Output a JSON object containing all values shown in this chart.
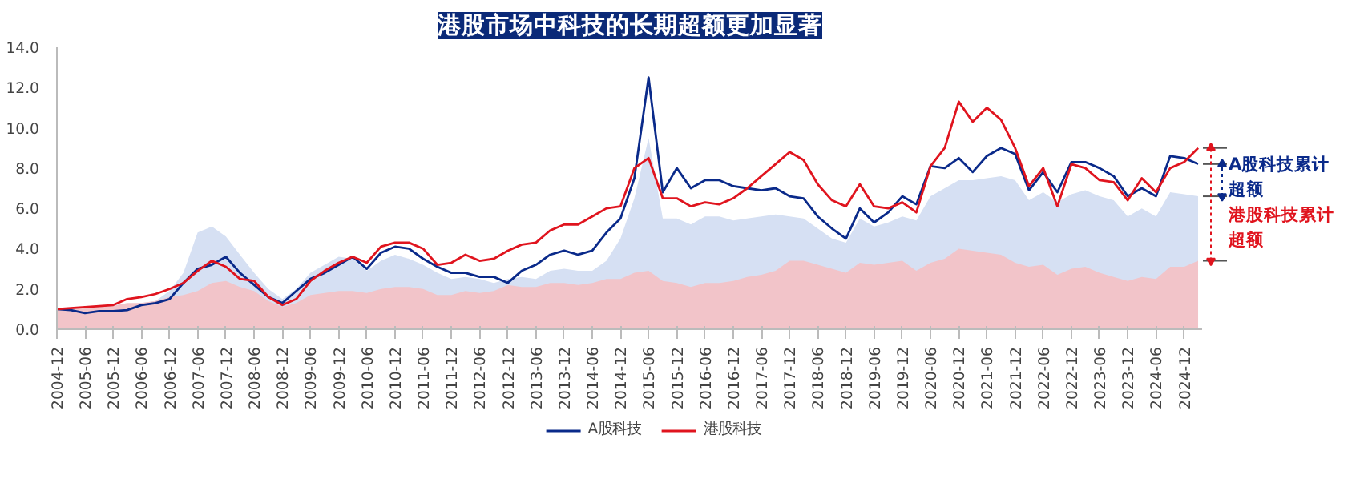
{
  "chart_data": {
    "type": "line",
    "title": "港股市场中科技的长期超额更加显著",
    "x": [
      "2004-12",
      "2005-03",
      "2005-06",
      "2005-09",
      "2005-12",
      "2006-03",
      "2006-06",
      "2006-09",
      "2006-12",
      "2007-03",
      "2007-06",
      "2007-09",
      "2007-12",
      "2008-03",
      "2008-06",
      "2008-09",
      "2008-12",
      "2009-03",
      "2009-06",
      "2009-09",
      "2009-12",
      "2010-03",
      "2010-06",
      "2010-09",
      "2010-12",
      "2011-03",
      "2011-06",
      "2011-09",
      "2011-12",
      "2012-03",
      "2012-06",
      "2012-09",
      "2012-12",
      "2013-03",
      "2013-06",
      "2013-09",
      "2013-12",
      "2014-03",
      "2014-06",
      "2014-09",
      "2014-12",
      "2015-03",
      "2015-06",
      "2015-09",
      "2015-12",
      "2016-03",
      "2016-06",
      "2016-09",
      "2016-12",
      "2017-03",
      "2017-06",
      "2017-09",
      "2017-12",
      "2018-03",
      "2018-06",
      "2018-09",
      "2018-12",
      "2019-03",
      "2019-06",
      "2019-09",
      "2019-12",
      "2020-03",
      "2020-06",
      "2020-09",
      "2020-12",
      "2021-03",
      "2021-06",
      "2021-09",
      "2021-12",
      "2022-03",
      "2022-06",
      "2022-09",
      "2022-12",
      "2023-03",
      "2023-06",
      "2023-09",
      "2023-12",
      "2024-03",
      "2024-06",
      "2024-09",
      "2024-12",
      "2025-03"
    ],
    "series": [
      {
        "type": "area",
        "color": "#d6e0f3",
        "values": [
          1.0,
          null,
          null,
          null,
          null,
          null,
          1.3,
          1.4,
          1.9,
          2.8,
          4.8,
          5.1,
          4.6,
          3.7,
          2.8,
          2.0,
          1.5,
          2.0,
          2.8,
          3.2,
          3.6,
          3.5,
          2.9,
          3.4,
          3.7,
          3.5,
          3.2,
          2.8,
          2.5,
          2.6,
          2.5,
          2.3,
          2.5,
          2.6,
          2.5,
          2.9,
          3.0,
          2.9,
          2.9,
          3.4,
          4.5,
          6.5,
          9.5,
          5.5,
          5.5,
          5.2,
          5.6,
          5.6,
          5.4,
          5.5,
          5.6,
          5.7,
          5.6,
          5.5,
          5.0,
          4.5,
          4.3,
          5.5,
          5.1,
          5.3,
          5.6,
          5.4,
          6.6,
          7.0,
          7.4,
          7.4,
          7.5,
          7.6,
          7.4,
          6.4,
          6.8,
          6.3,
          6.7,
          6.9,
          6.6,
          6.4,
          5.6,
          6.0,
          5.6,
          6.8,
          6.7,
          6.6
        ]
      },
      {
        "type": "area",
        "color": "#f2c4c9",
        "values": [
          1.0,
          1.0,
          1.05,
          1.1,
          1.15,
          1.3,
          1.3,
          1.4,
          1.6,
          1.7,
          1.9,
          2.3,
          2.4,
          2.1,
          1.9,
          1.4,
          1.1,
          1.3,
          1.7,
          1.8,
          1.9,
          1.9,
          1.8,
          2.0,
          2.1,
          2.1,
          2.0,
          1.7,
          1.7,
          1.9,
          1.8,
          1.9,
          2.2,
          2.1,
          2.1,
          2.3,
          2.3,
          2.2,
          2.3,
          2.5,
          2.5,
          2.8,
          2.9,
          2.4,
          2.3,
          2.1,
          2.3,
          2.3,
          2.4,
          2.6,
          2.7,
          2.9,
          3.4,
          3.4,
          3.2,
          3.0,
          2.8,
          3.3,
          3.2,
          3.3,
          3.4,
          2.9,
          3.3,
          3.5,
          4.0,
          3.9,
          3.8,
          3.7,
          3.3,
          3.1,
          3.2,
          2.7,
          3.0,
          3.1,
          2.8,
          2.6,
          2.4,
          2.6,
          2.5,
          3.1,
          3.1,
          3.4
        ]
      },
      {
        "name": "A股科技",
        "color": "#0a2a8a",
        "values": [
          1.0,
          0.95,
          0.8,
          0.9,
          0.9,
          0.95,
          1.2,
          1.3,
          1.5,
          2.3,
          3.0,
          3.2,
          3.6,
          2.8,
          2.2,
          1.6,
          1.3,
          1.9,
          2.5,
          2.8,
          3.2,
          3.6,
          3.0,
          3.8,
          4.1,
          4.0,
          3.5,
          3.1,
          2.8,
          2.8,
          2.6,
          2.6,
          2.3,
          2.9,
          3.2,
          3.7,
          3.9,
          3.7,
          3.9,
          4.8,
          5.5,
          7.5,
          12.5,
          6.8,
          8.0,
          7.0,
          7.4,
          7.4,
          7.1,
          7.0,
          6.9,
          7.0,
          6.6,
          6.5,
          5.6,
          5.0,
          4.5,
          6.0,
          5.3,
          5.8,
          6.6,
          6.2,
          8.1,
          8.0,
          8.5,
          7.8,
          8.6,
          9.0,
          8.7,
          6.9,
          7.8,
          6.8,
          8.3,
          8.3,
          8.0,
          7.6,
          6.6,
          7.0,
          6.6,
          8.6,
          8.5,
          8.2
        ]
      },
      {
        "name": "港股科技",
        "color": "#e0141e",
        "values": [
          1.0,
          1.05,
          1.1,
          1.15,
          1.2,
          1.5,
          1.6,
          1.75,
          2.0,
          2.3,
          2.9,
          3.4,
          3.1,
          2.5,
          2.4,
          1.6,
          1.2,
          1.5,
          2.4,
          2.9,
          3.3,
          3.6,
          3.3,
          4.1,
          4.3,
          4.3,
          4.0,
          3.2,
          3.3,
          3.7,
          3.4,
          3.5,
          3.9,
          4.2,
          4.3,
          4.9,
          5.2,
          5.2,
          5.6,
          6.0,
          6.1,
          8.0,
          8.5,
          6.5,
          6.5,
          6.1,
          6.3,
          6.2,
          6.5,
          7.0,
          7.6,
          8.2,
          8.8,
          8.4,
          7.2,
          6.4,
          6.1,
          7.2,
          6.1,
          6.0,
          6.3,
          5.8,
          8.1,
          9.0,
          11.3,
          10.3,
          11.0,
          10.4,
          9.0,
          7.1,
          8.0,
          6.1,
          8.2,
          8.0,
          7.4,
          7.3,
          6.4,
          7.5,
          6.8,
          8.0,
          8.3,
          9.0
        ]
      }
    ],
    "xlim": [
      "2004-12",
      "2025-04"
    ],
    "xticks": [
      "2004-12",
      "2005-06",
      "2005-12",
      "2006-06",
      "2006-12",
      "2007-06",
      "2007-12",
      "2008-06",
      "2008-12",
      "2009-06",
      "2009-12",
      "2010-06",
      "2010-12",
      "2011-06",
      "2011-12",
      "2012-06",
      "2012-12",
      "2013-06",
      "2013-12",
      "2014-06",
      "2014-12",
      "2015-06",
      "2015-12",
      "2016-06",
      "2016-12",
      "2017-06",
      "2017-12",
      "2018-06",
      "2018-12",
      "2019-06",
      "2019-12",
      "2020-06",
      "2020-12",
      "2021-06",
      "2021-12",
      "2022-06",
      "2022-12",
      "2023-06",
      "2023-12",
      "2024-06",
      "2024-12"
    ],
    "ylim": [
      0,
      14
    ],
    "yticks": [
      {
        "value": 0,
        "label": "0.0"
      },
      {
        "value": 2,
        "label": "2.0"
      },
      {
        "value": 4,
        "label": "4.0"
      },
      {
        "value": 6,
        "label": "6.0"
      },
      {
        "value": 8,
        "label": "8.0"
      },
      {
        "value": 10,
        "label": "10.0"
      },
      {
        "value": 12,
        "label": "12.0"
      },
      {
        "value": 14,
        "label": "14.0"
      }
    ],
    "annotations": [
      "A股科技累计超额",
      "港股科技累计超额"
    ],
    "grid": false,
    "legend": "bottom",
    "line_style": "solid",
    "marker": "none"
  }
}
